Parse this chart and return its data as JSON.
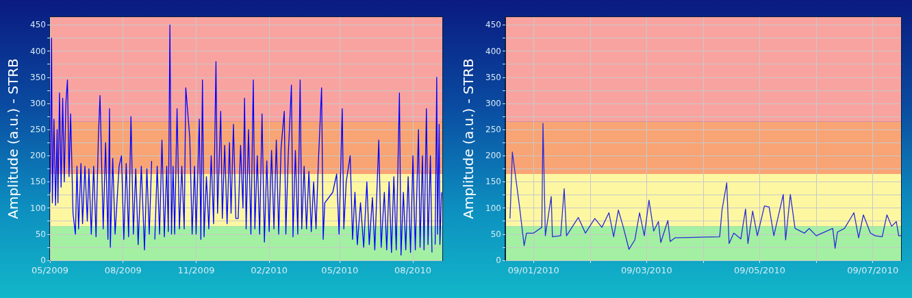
{
  "chart_data": [
    {
      "type": "line",
      "ylabel": "Amplitude (a.u.) - STRB",
      "color": "#0000ff",
      "grid": true,
      "xlim": [
        "2009-05-01",
        "2010-09-07"
      ],
      "ylim": [
        0,
        465
      ],
      "xticks": [
        {
          "value": "2009-05",
          "label": "05/2009"
        },
        {
          "value": "2009-08",
          "label": "08/2009"
        },
        {
          "value": "2009-11",
          "label": "11/2009"
        },
        {
          "value": "2010-02",
          "label": "02/2010"
        },
        {
          "value": "2010-05",
          "label": "05/2010"
        },
        {
          "value": "2010-08",
          "label": "08/2010"
        }
      ],
      "yticks": [
        0,
        {
          "value": 25,
          "label": null
        },
        50,
        {
          "value": 75,
          "label": null
        },
        100,
        {
          "value": 125,
          "label": null
        },
        150,
        {
          "value": 175,
          "label": null
        },
        200,
        {
          "value": 225,
          "label": null
        },
        250,
        {
          "value": 275,
          "label": null
        },
        300,
        {
          "value": 325,
          "label": null
        },
        350,
        {
          "value": 375,
          "label": null
        },
        400,
        {
          "value": 425,
          "label": null
        },
        450
      ],
      "bands": [
        {
          "axis": "y",
          "from": 0,
          "to": 65,
          "color": "#a3f0a3"
        },
        {
          "axis": "y",
          "from": 65,
          "to": 165,
          "color": "#fdf7a2"
        },
        {
          "axis": "y",
          "from": 165,
          "to": 265,
          "color": "#f9a474"
        },
        {
          "axis": "y",
          "from": 265,
          "to": 465,
          "color": "#f9a3a0"
        }
      ],
      "x": [
        "2009-05-01",
        "2009-05-02",
        "2009-05-03",
        "2009-05-04",
        "2009-05-06",
        "2009-05-08",
        "2009-05-10",
        "2009-05-11",
        "2009-05-13",
        "2009-05-15",
        "2009-05-17",
        "2009-05-19",
        "2009-05-21",
        "2009-05-23",
        "2009-05-25",
        "2009-05-27",
        "2009-05-30",
        "2009-06-02",
        "2009-06-04",
        "2009-06-06",
        "2009-06-09",
        "2009-06-11",
        "2009-06-14",
        "2009-06-17",
        "2009-06-19",
        "2009-06-22",
        "2009-06-25",
        "2009-06-28",
        "2009-07-01",
        "2009-07-03",
        "2009-07-07",
        "2009-07-10",
        "2009-07-13",
        "2009-07-15",
        "2009-07-16",
        "2009-07-19",
        "2009-07-22",
        "2009-07-27",
        "2009-07-30",
        "2009-08-02",
        "2009-08-05",
        "2009-08-08",
        "2009-08-11",
        "2009-08-14",
        "2009-08-17",
        "2009-08-20",
        "2009-08-24",
        "2009-08-28",
        "2009-08-31",
        "2009-09-03",
        "2009-09-06",
        "2009-09-08",
        "2009-09-10",
        "2009-09-13",
        "2009-09-16",
        "2009-09-19",
        "2009-09-22",
        "2009-09-25",
        "2009-09-27",
        "2009-09-29",
        "2009-10-01",
        "2009-10-03",
        "2009-10-05",
        "2009-10-08",
        "2009-10-11",
        "2009-10-14",
        "2009-10-17",
        "2009-10-19",
        "2009-10-24",
        "2009-10-27",
        "2009-10-30",
        "2009-11-01",
        "2009-11-05",
        "2009-11-07",
        "2009-11-09",
        "2009-11-11",
        "2009-11-14",
        "2009-11-17",
        "2009-11-20",
        "2009-11-23",
        "2009-11-26",
        "2009-11-28",
        "2009-12-02",
        "2009-12-04",
        "2009-12-07",
        "2009-12-10",
        "2009-12-13",
        "2009-12-15",
        "2009-12-18",
        "2009-12-21",
        "2009-12-24",
        "2009-12-27",
        "2009-12-30",
        "2010-01-01",
        "2010-01-03",
        "2010-01-06",
        "2010-01-09",
        "2010-01-12",
        "2010-01-14",
        "2010-01-17",
        "2010-01-20",
        "2010-01-23",
        "2010-01-26",
        "2010-01-29",
        "2010-02-01",
        "2010-02-04",
        "2010-02-07",
        "2010-02-10",
        "2010-02-13",
        "2010-02-16",
        "2010-02-20",
        "2010-02-22",
        "2010-02-25",
        "2010-03-01",
        "2010-03-03",
        "2010-03-06",
        "2010-03-09",
        "2010-03-12",
        "2010-03-14",
        "2010-03-17",
        "2010-03-20",
        "2010-03-23",
        "2010-03-26",
        "2010-03-29",
        "2010-04-01",
        "2010-04-04",
        "2010-04-08",
        "2010-04-10",
        "2010-04-12",
        "2010-04-22",
        "2010-04-27",
        "2010-04-30",
        "2010-05-04",
        "2010-05-06",
        "2010-05-09",
        "2010-05-14",
        "2010-05-17",
        "2010-05-20",
        "2010-05-23",
        "2010-05-27",
        "2010-05-31",
        "2010-06-04",
        "2010-06-07",
        "2010-06-11",
        "2010-06-14",
        "2010-06-19",
        "2010-06-22",
        "2010-06-26",
        "2010-06-29",
        "2010-07-02",
        "2010-07-05",
        "2010-07-08",
        "2010-07-11",
        "2010-07-15",
        "2010-07-17",
        "2010-07-20",
        "2010-07-23",
        "2010-07-26",
        "2010-07-29",
        "2010-08-01",
        "2010-08-04",
        "2010-08-08",
        "2010-08-10",
        "2010-08-13",
        "2010-08-15",
        "2010-08-18",
        "2010-08-20",
        "2010-08-23",
        "2010-08-25",
        "2010-08-28",
        "2010-08-29",
        "2010-08-31",
        "2010-09-01",
        "2010-09-03",
        "2010-09-04",
        "2010-09-06"
      ],
      "values": [
        130,
        250,
        425,
        110,
        270,
        105,
        250,
        110,
        320,
        140,
        310,
        150,
        300,
        345,
        160,
        280,
        90,
        50,
        180,
        60,
        185,
        70,
        180,
        75,
        175,
        50,
        180,
        45,
        240,
        315,
        60,
        225,
        40,
        290,
        25,
        195,
        50,
        180,
        200,
        40,
        185,
        45,
        275,
        50,
        175,
        30,
        180,
        20,
        175,
        50,
        190,
        null,
        40,
        180,
        50,
        230,
        45,
        180,
        55,
        450,
        50,
        180,
        50,
        290,
        60,
        180,
        60,
        330,
        235,
        50,
        180,
        50,
        270,
        40,
        345,
        45,
        160,
        60,
        200,
        70,
        380,
        90,
        285,
        80,
        220,
        70,
        225,
        90,
        260,
        80,
        80,
        220,
        100,
        310,
        60,
        250,
        50,
        345,
        60,
        200,
        50,
        280,
        35,
        190,
        55,
        210,
        60,
        230,
        50,
        215,
        285,
        50,
        200,
        335,
        45,
        210,
        50,
        345,
        60,
        180,
        60,
        170,
        55,
        150,
        60,
        190,
        330,
        40,
        110,
        130,
        165,
        50,
        290,
        60,
        150,
        200,
        40,
        130,
        30,
        110,
        25,
        150,
        30,
        120,
        20,
        230,
        25,
        130,
        20,
        150,
        15,
        160,
        20,
        320,
        10,
        130,
        20,
        160,
        15,
        200,
        20,
        250,
        25,
        200,
        20,
        290,
        30,
        200,
        15,
        null,
        30,
        350,
        50,
        260,
        30,
        130
      ]
    },
    {
      "type": "line",
      "ylabel": "Amplitude (a.u.) - STRB",
      "color": "#2b2bd6",
      "grid": true,
      "xlim": [
        "2010-08-31T12:00",
        "2010-09-07T12:00"
      ],
      "ylim": [
        0,
        465
      ],
      "xticks": [
        {
          "value": "2010-09-01",
          "label": "09/01/2010"
        },
        {
          "value": "2010-09-02",
          "label": null
        },
        {
          "value": "2010-09-03",
          "label": "09/03/2010"
        },
        {
          "value": "2010-09-04",
          "label": null
        },
        {
          "value": "2010-09-05",
          "label": "09/05/2010"
        },
        {
          "value": "2010-09-06",
          "label": null
        },
        {
          "value": "2010-09-07",
          "label": "09/07/2010"
        }
      ],
      "yticks": [
        0,
        {
          "value": 25,
          "label": null
        },
        50,
        {
          "value": 75,
          "label": null
        },
        100,
        {
          "value": 125,
          "label": null
        },
        150,
        {
          "value": 175,
          "label": null
        },
        200,
        {
          "value": 225,
          "label": null
        },
        250,
        {
          "value": 275,
          "label": null
        },
        300,
        {
          "value": 325,
          "label": null
        },
        350,
        {
          "value": 375,
          "label": null
        },
        400,
        {
          "value": 425,
          "label": null
        },
        450
      ],
      "bands": [
        {
          "axis": "y",
          "from": 0,
          "to": 65,
          "color": "#a3f0a3"
        },
        {
          "axis": "y",
          "from": 65,
          "to": 165,
          "color": "#fdf7a2"
        },
        {
          "axis": "y",
          "from": 165,
          "to": 265,
          "color": "#f9a474"
        },
        {
          "axis": "y",
          "from": 265,
          "to": 465,
          "color": "#f9a3a0"
        }
      ],
      "x": [
        "2010-08-31T14:00",
        "2010-08-31T15:00",
        "2010-08-31T18:00",
        "2010-08-31T20:00",
        "2010-08-31T21:00",
        "2010-09-01T00:00",
        "2010-09-01T03:30",
        "2010-09-01T04:00",
        "2010-09-01T05:00",
        "2010-09-01T07:30",
        "2010-09-01T08:00",
        "2010-09-01T11:30",
        "2010-09-01T13:00",
        "2010-09-01T14:00",
        "2010-09-01T19:00",
        "2010-09-01T22:00",
        "2010-09-02T02:00",
        "2010-09-02T05:00",
        "2010-09-02T08:00",
        "2010-09-02T10:00",
        "2010-09-02T12:00",
        "2010-09-02T14:00",
        "2010-09-02T16:30",
        "2010-09-02T19:00",
        "2010-09-02T21:00",
        "2010-09-02T23:00",
        "2010-09-03T01:00",
        "2010-09-03T03:00",
        "2010-09-03T05:00",
        "2010-09-03T06:00",
        "2010-09-03T09:00",
        "2010-09-03T10:00",
        "2010-09-03T12:00",
        "2010-09-04T07:00",
        "2010-09-04T08:00",
        "2010-09-04T10:00",
        "2010-09-04T11:00",
        "2010-09-04T13:00",
        "2010-09-04T16:00",
        "2010-09-04T18:00",
        "2010-09-04T19:00",
        "2010-09-04T21:00",
        "2010-09-04T23:00",
        "2010-09-05T02:00",
        "2010-09-05T04:00",
        "2010-09-05T06:00",
        "2010-09-05T10:00",
        "2010-09-05T11:00",
        "2010-09-05T13:00",
        "2010-09-05T15:00",
        "2010-09-05T19:00",
        "2010-09-05T21:00",
        "2010-09-06T00:00",
        "2010-09-06T07:00",
        "2010-09-06T08:00",
        "2010-09-06T09:00",
        "2010-09-06T12:00",
        "2010-09-06T16:00",
        "2010-09-06T18:00",
        "2010-09-06T20:00",
        "2010-09-06T23:00",
        "2010-09-07T01:00",
        "2010-09-07T04:00",
        "2010-09-07T06:00",
        "2010-09-07T08:00",
        "2010-09-07T10:00",
        "2010-09-07T11:00",
        "2010-09-07T12:00"
      ],
      "values": [
        80,
        207,
        104,
        28,
        52,
        52,
        63,
        262,
        47,
        122,
        45,
        47,
        137,
        47,
        82,
        52,
        80,
        63,
        91,
        45,
        96,
        65,
        21,
        39,
        91,
        47,
        115,
        56,
        74,
        34,
        76,
        36,
        43,
        45,
        96,
        148,
        32,
        52,
        41,
        98,
        32,
        94,
        47,
        104,
        102,
        47,
        126,
        39,
        126,
        61,
        52,
        61,
        47,
        61,
        23,
        54,
        61,
        91,
        43,
        87,
        52,
        47,
        45,
        87,
        65,
        74,
        47,
        47
      ]
    }
  ]
}
